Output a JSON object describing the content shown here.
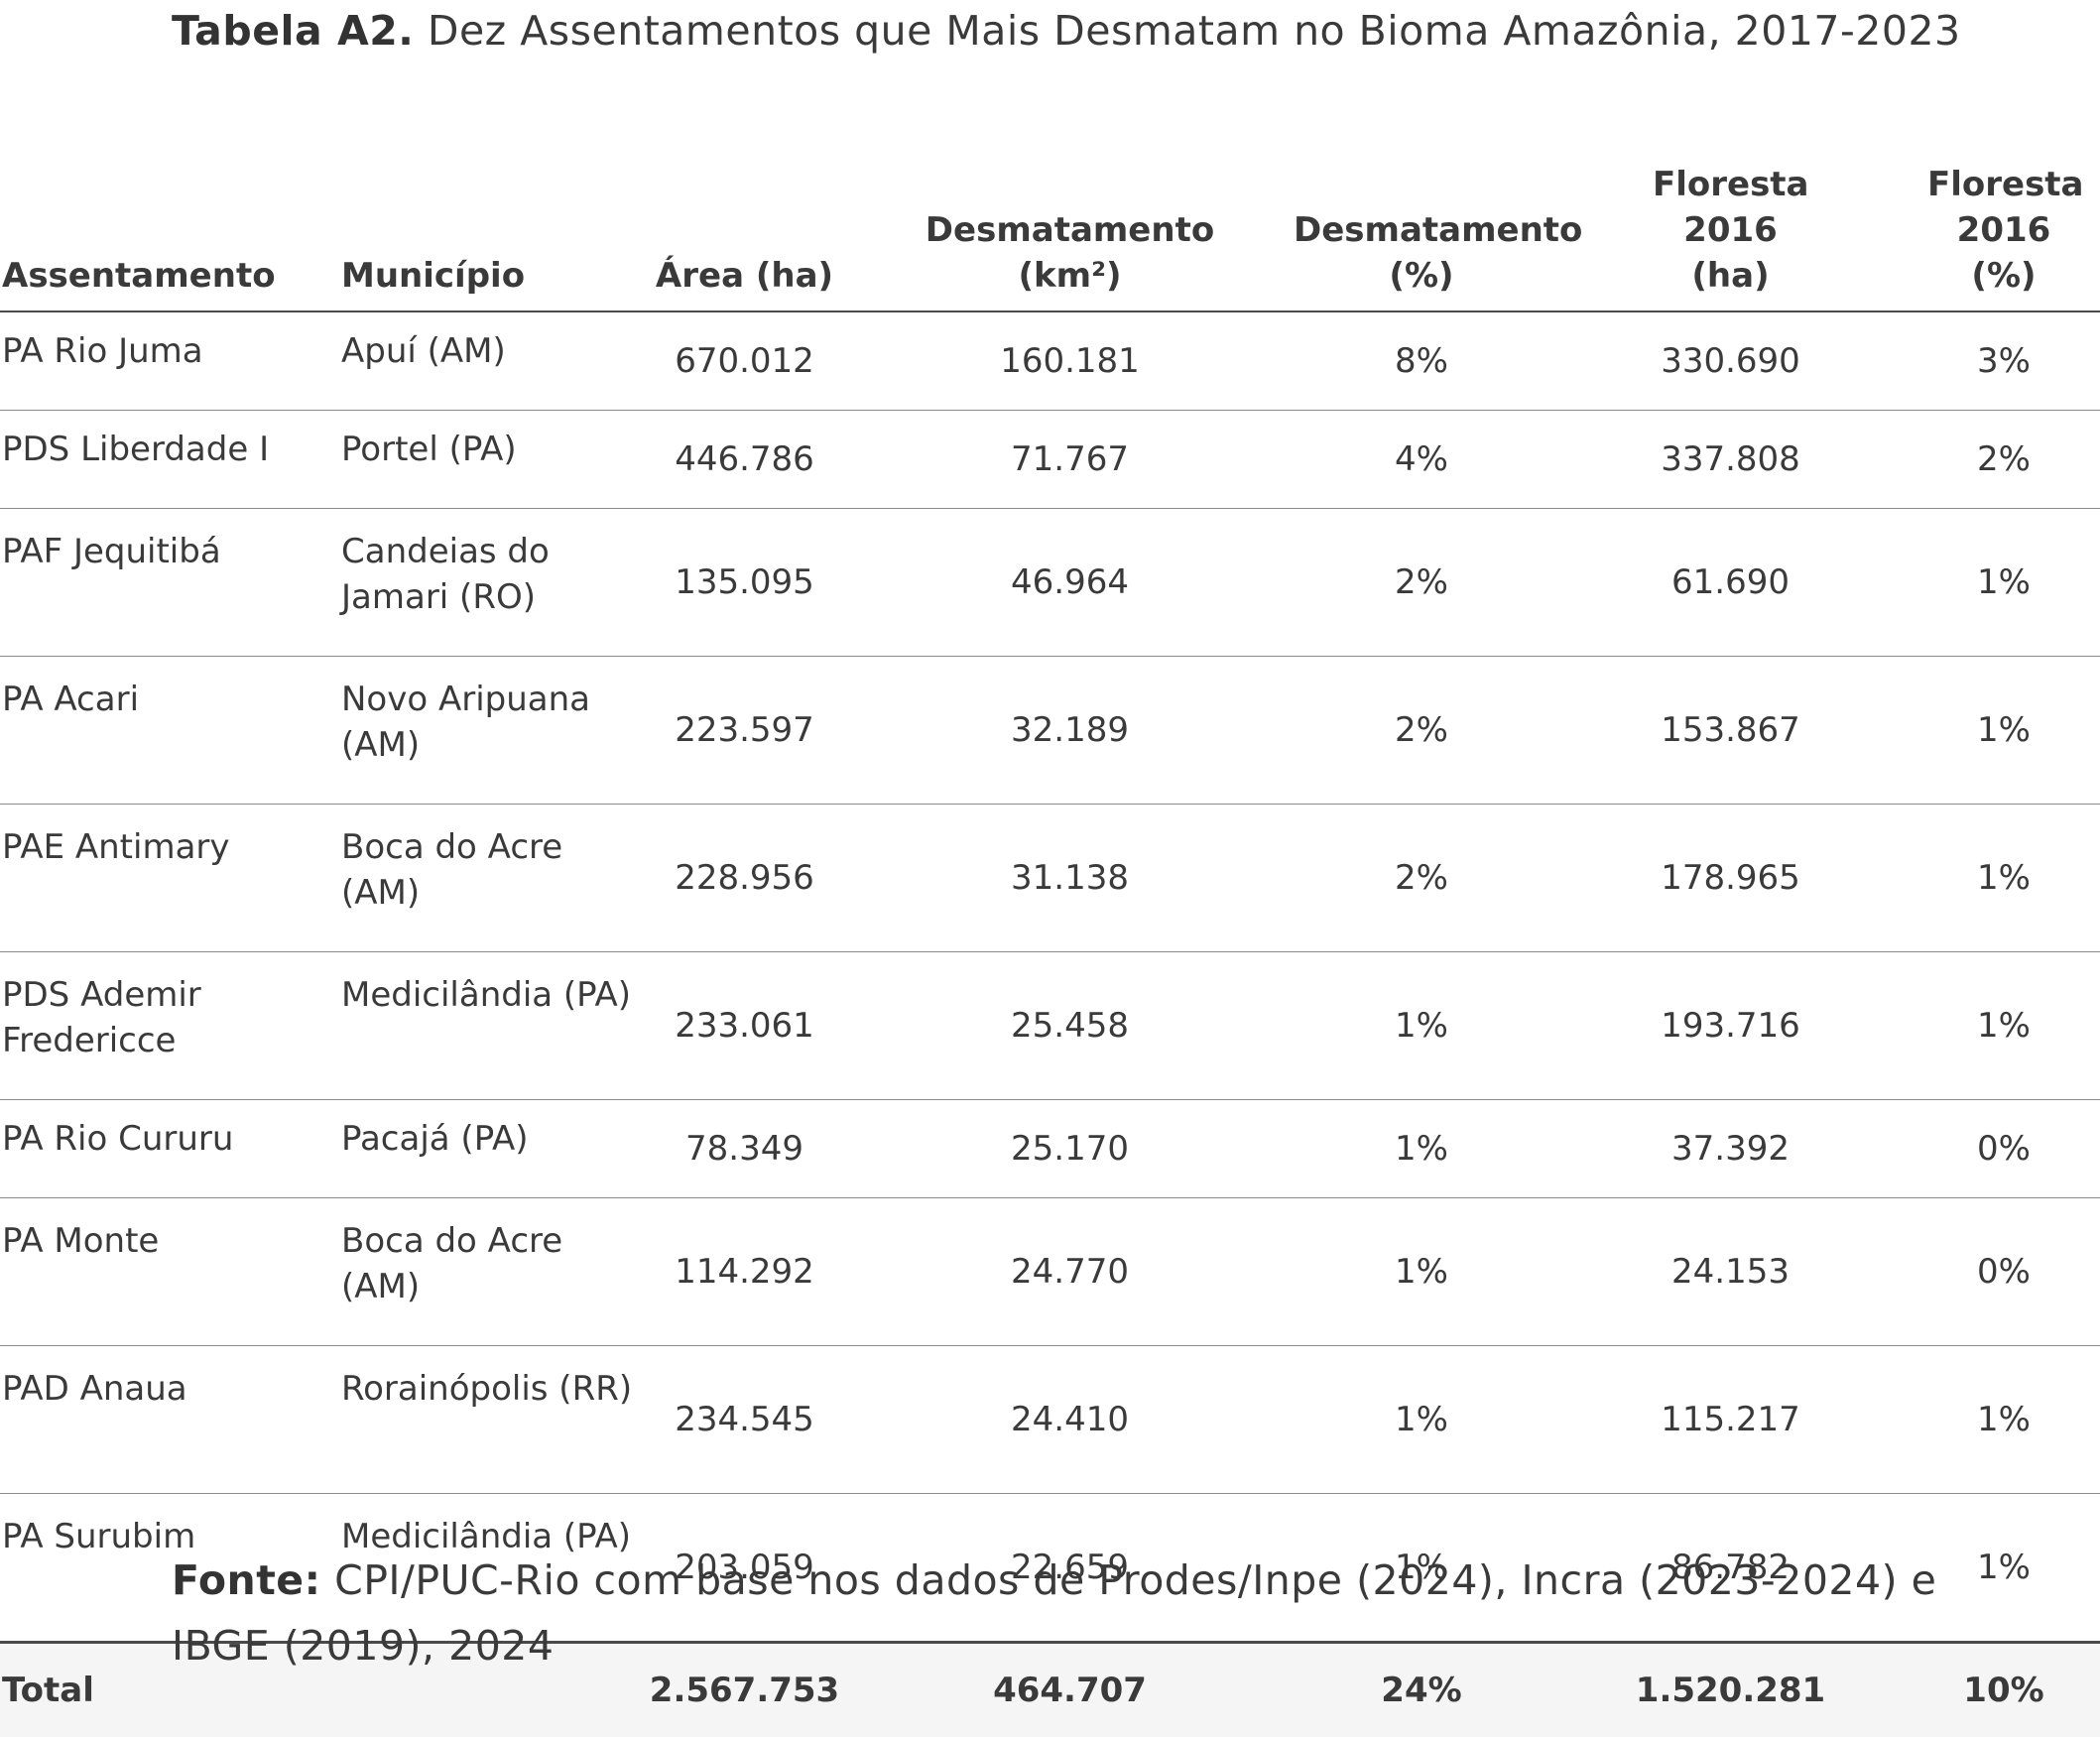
{
  "caption": {
    "label": "Tabela A2.",
    "text": "Dez Assentamentos que Mais Desmatam no Bioma Amazônia, 2017-2023"
  },
  "table": {
    "headers": {
      "assentamento": "Assentamento",
      "municipio": "Município",
      "area": "Área (ha)",
      "desm_km2": "Desmatamento (km²)",
      "desm_pct": "Desmatamento (%)",
      "floresta_ha": "Floresta 2016 (ha)",
      "floresta_pct": "Floresta 2016 (%)"
    },
    "rows": [
      {
        "assentamento": "PA Rio Juma",
        "municipio": "Apuí (AM)",
        "area": "670.012",
        "desm_km2": "160.181",
        "desm_pct": "8%",
        "floresta_ha": "330.690",
        "floresta_pct": "3%"
      },
      {
        "assentamento": "PDS Liberdade I",
        "municipio": "Portel (PA)",
        "area": "446.786",
        "desm_km2": "71.767",
        "desm_pct": "4%",
        "floresta_ha": "337.808",
        "floresta_pct": "2%"
      },
      {
        "assentamento": "PAF Jequitibá",
        "municipio": "Candeias do Jamari (RO)",
        "area": "135.095",
        "desm_km2": "46.964",
        "desm_pct": "2%",
        "floresta_ha": "61.690",
        "floresta_pct": "1%"
      },
      {
        "assentamento": "PA Acari",
        "municipio": "Novo Aripuana (AM)",
        "area": "223.597",
        "desm_km2": "32.189",
        "desm_pct": "2%",
        "floresta_ha": "153.867",
        "floresta_pct": "1%"
      },
      {
        "assentamento": "PAE Antimary",
        "municipio": "Boca do Acre (AM)",
        "area": "228.956",
        "desm_km2": "31.138",
        "desm_pct": "2%",
        "floresta_ha": "178.965",
        "floresta_pct": "1%"
      },
      {
        "assentamento": "PDS Ademir Fredericce",
        "municipio": "Medicilândia (PA)",
        "area": "233.061",
        "desm_km2": "25.458",
        "desm_pct": "1%",
        "floresta_ha": "193.716",
        "floresta_pct": "1%"
      },
      {
        "assentamento": "PA Rio Cururu",
        "municipio": "Pacajá (PA)",
        "area": "78.349",
        "desm_km2": "25.170",
        "desm_pct": "1%",
        "floresta_ha": "37.392",
        "floresta_pct": "0%"
      },
      {
        "assentamento": "PA Monte",
        "municipio": "Boca do Acre (AM)",
        "area": "114.292",
        "desm_km2": "24.770",
        "desm_pct": "1%",
        "floresta_ha": "24.153",
        "floresta_pct": "0%"
      },
      {
        "assentamento": "PAD Anaua",
        "municipio": "Rorainópolis (RR)",
        "area": "234.545",
        "desm_km2": "24.410",
        "desm_pct": "1%",
        "floresta_ha": "115.217",
        "floresta_pct": "1%"
      },
      {
        "assentamento": "PA Surubim",
        "municipio": "Medicilândia (PA)",
        "area": "203.059",
        "desm_km2": "22.659",
        "desm_pct": "1%",
        "floresta_ha": "86.782",
        "floresta_pct": "1%"
      }
    ],
    "total": {
      "label": "Total",
      "area": "2.567.753",
      "desm_km2": "464.707",
      "desm_pct": "24%",
      "floresta_ha": "1.520.281",
      "floresta_pct": "10%"
    }
  },
  "source": {
    "label": "Fonte:",
    "text": "CPI/PUC-Rio com base nos dados de Prodes/Inpe (2024), Incra (2023-2024) e IBGE (2019), 2024"
  }
}
